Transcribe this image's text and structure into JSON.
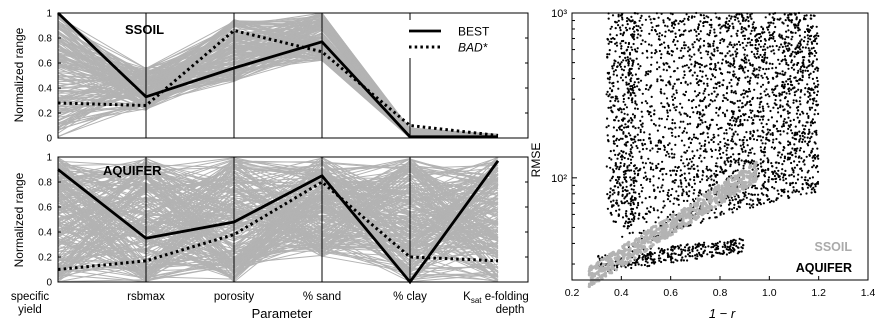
{
  "chart_data": [
    {
      "type": "line",
      "panel_label": "SSOIL",
      "ylabel": "Normalized range",
      "ylim": [
        0,
        1
      ],
      "yticks": [
        "0",
        "0.2",
        "0.4",
        "0.6",
        "0.8",
        "1"
      ],
      "categories": [
        "specific yield",
        "rsbmax",
        "porosity",
        "% sand",
        "% clay",
        "K_sat e-folding depth"
      ],
      "legend": {
        "placement": "top-right",
        "entries": [
          "BEST",
          "BAD*"
        ]
      },
      "series": [
        {
          "name": "BEST",
          "style": "solid",
          "color": "#000000",
          "values": [
            1.0,
            0.33,
            0.56,
            0.77,
            0.01,
            0.01
          ]
        },
        {
          "name": "BAD*",
          "style": "dotted",
          "color": "#000000",
          "values": [
            0.28,
            0.26,
            0.86,
            0.69,
            0.1,
            0.02
          ]
        }
      ],
      "ensemble_color": "#b3b3b3"
    },
    {
      "type": "line",
      "panel_label": "AQUIFER",
      "ylabel": "Normalized range",
      "xlabel": "Parameter",
      "ylim": [
        0,
        1
      ],
      "yticks": [
        "0",
        "0.2",
        "0.4",
        "0.6",
        "0.8",
        "1"
      ],
      "xtick_labels": [
        {
          "main": "specific",
          "line2": "yield"
        },
        {
          "main": "rsbmax",
          "line2": ""
        },
        {
          "main": "porosity",
          "line2": ""
        },
        {
          "main": "% sand",
          "line2": ""
        },
        {
          "main": "% clay",
          "line2": ""
        },
        {
          "main": "K",
          "sub": "sat",
          "rest": " e-folding",
          "line2": "depth"
        }
      ],
      "categories": [
        "specific yield",
        "rsbmax",
        "porosity",
        "% sand",
        "% clay",
        "K_sat e-folding depth"
      ],
      "series": [
        {
          "name": "BEST",
          "style": "solid",
          "color": "#000000",
          "values": [
            0.9,
            0.35,
            0.48,
            0.85,
            0.0,
            0.97
          ]
        },
        {
          "name": "BAD*",
          "style": "dotted",
          "color": "#000000",
          "values": [
            0.1,
            0.17,
            0.38,
            0.8,
            0.2,
            0.17
          ]
        }
      ],
      "ensemble_color": "#b3b3b3"
    },
    {
      "type": "scatter",
      "xlabel": "1 − r",
      "ylabel": "RMSE",
      "xlim": [
        0.2,
        1.4
      ],
      "xticks": [
        "0.2",
        "0.4",
        "0.6",
        "0.8",
        "1.0",
        "1.2",
        "1.4"
      ],
      "yscale": "log",
      "ylim": [
        24,
        1000
      ],
      "ytick_labels": [
        "10²",
        "10³"
      ],
      "series": [
        {
          "name": "SSOIL",
          "color": "#b3b3b3",
          "x_range": [
            0.27,
            0.95
          ],
          "y_range": [
            25,
            110
          ]
        },
        {
          "name": "AQUIFER",
          "color": "#000000",
          "x_range": [
            0.28,
            1.3
          ],
          "y_range": [
            26,
            1000
          ]
        }
      ],
      "annotations": [
        "SSOIL",
        "AQUIFER"
      ]
    }
  ]
}
